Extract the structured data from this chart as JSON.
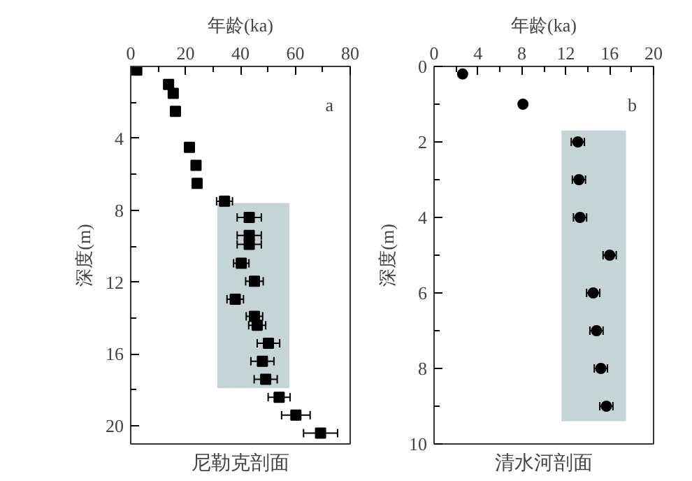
{
  "chart_data": [
    {
      "type": "scatter",
      "xlabel": "年龄(ka)",
      "ylabel": "深度(m)",
      "title": "尼勒克剖面",
      "marker": "square",
      "grid": false,
      "xlim": [
        0,
        80
      ],
      "xticks": [
        0,
        {
          "value": 10,
          "label": null
        },
        20,
        {
          "value": 30,
          "label": null
        },
        40,
        {
          "value": 50,
          "label": null
        },
        60,
        {
          "value": 70,
          "label": null
        },
        80
      ],
      "ylim": [
        21,
        0
      ],
      "yticks": [
        {
          "value": 2,
          "label": null
        },
        4,
        {
          "value": 6,
          "label": null
        },
        8,
        {
          "value": 10,
          "label": null
        },
        12,
        {
          "value": 14,
          "label": null
        },
        16,
        {
          "value": 18,
          "label": null
        },
        20
      ],
      "bands": [
        {
          "axis": "y",
          "from": 7.6,
          "to": 17.9,
          "color": "#c5d4d4"
        }
      ],
      "annotations": [
        "a"
      ],
      "series": [
        {
          "color": "#000000",
          "x": [
            2.2,
            13.8,
            15.5,
            16.3,
            21.4,
            23.8,
            24.2,
            34.2,
            43.2,
            43.2,
            43.2,
            40.3,
            45.1,
            38.1,
            45.1,
            46.1,
            50.2,
            48.0,
            49.2,
            54.1,
            60.2,
            69.2
          ],
          "values": [
            0.2,
            1.0,
            1.5,
            2.5,
            4.5,
            5.5,
            6.5,
            7.5,
            8.4,
            9.4,
            9.9,
            10.95,
            11.95,
            12.95,
            13.9,
            14.4,
            15.4,
            16.4,
            17.4,
            18.4,
            19.4,
            20.4
          ],
          "xerrors": [
            null,
            null,
            null,
            null,
            null,
            null,
            null,
            2.9,
            4.4,
            4.4,
            4.4,
            2.8,
            3.2,
            3.0,
            3.0,
            3.1,
            4.1,
            4.2,
            4.2,
            4.0,
            5.2,
            6.2
          ]
        }
      ]
    },
    {
      "type": "scatter",
      "xlabel": "年龄(ka)",
      "ylabel": "深度(m)",
      "title": "清水河剖面",
      "marker": "circle",
      "grid": false,
      "xlim": [
        0,
        20
      ],
      "xticks": [
        0,
        {
          "value": 2,
          "label": null
        },
        4,
        {
          "value": 6,
          "label": null
        },
        8,
        {
          "value": 10,
          "label": null
        },
        12,
        {
          "value": 14,
          "label": null
        },
        16,
        {
          "value": 18,
          "label": null
        },
        20
      ],
      "ylim": [
        10,
        0
      ],
      "yticks": [
        0,
        {
          "value": 1,
          "label": null
        },
        2,
        {
          "value": 3,
          "label": null
        },
        4,
        {
          "value": 5,
          "label": null
        },
        6,
        {
          "value": 7,
          "label": null
        },
        8,
        {
          "value": 9,
          "label": null
        },
        10
      ],
      "bands": [
        {
          "axis": "y",
          "from": 1.7,
          "to": 9.4,
          "color": "#c5d4d4"
        }
      ],
      "annotations": [
        "b"
      ],
      "series": [
        {
          "color": "#000000",
          "x": [
            2.6,
            8.1,
            13.1,
            13.2,
            13.3,
            16.0,
            14.5,
            14.8,
            15.2,
            15.7
          ],
          "values": [
            0.2,
            1.0,
            2.0,
            3.0,
            4.0,
            5.0,
            6.0,
            7.0,
            8.0,
            9.0
          ],
          "xerrors": [
            null,
            null,
            0.6,
            0.6,
            0.6,
            0.6,
            0.6,
            0.6,
            0.6,
            0.6
          ]
        }
      ]
    }
  ]
}
